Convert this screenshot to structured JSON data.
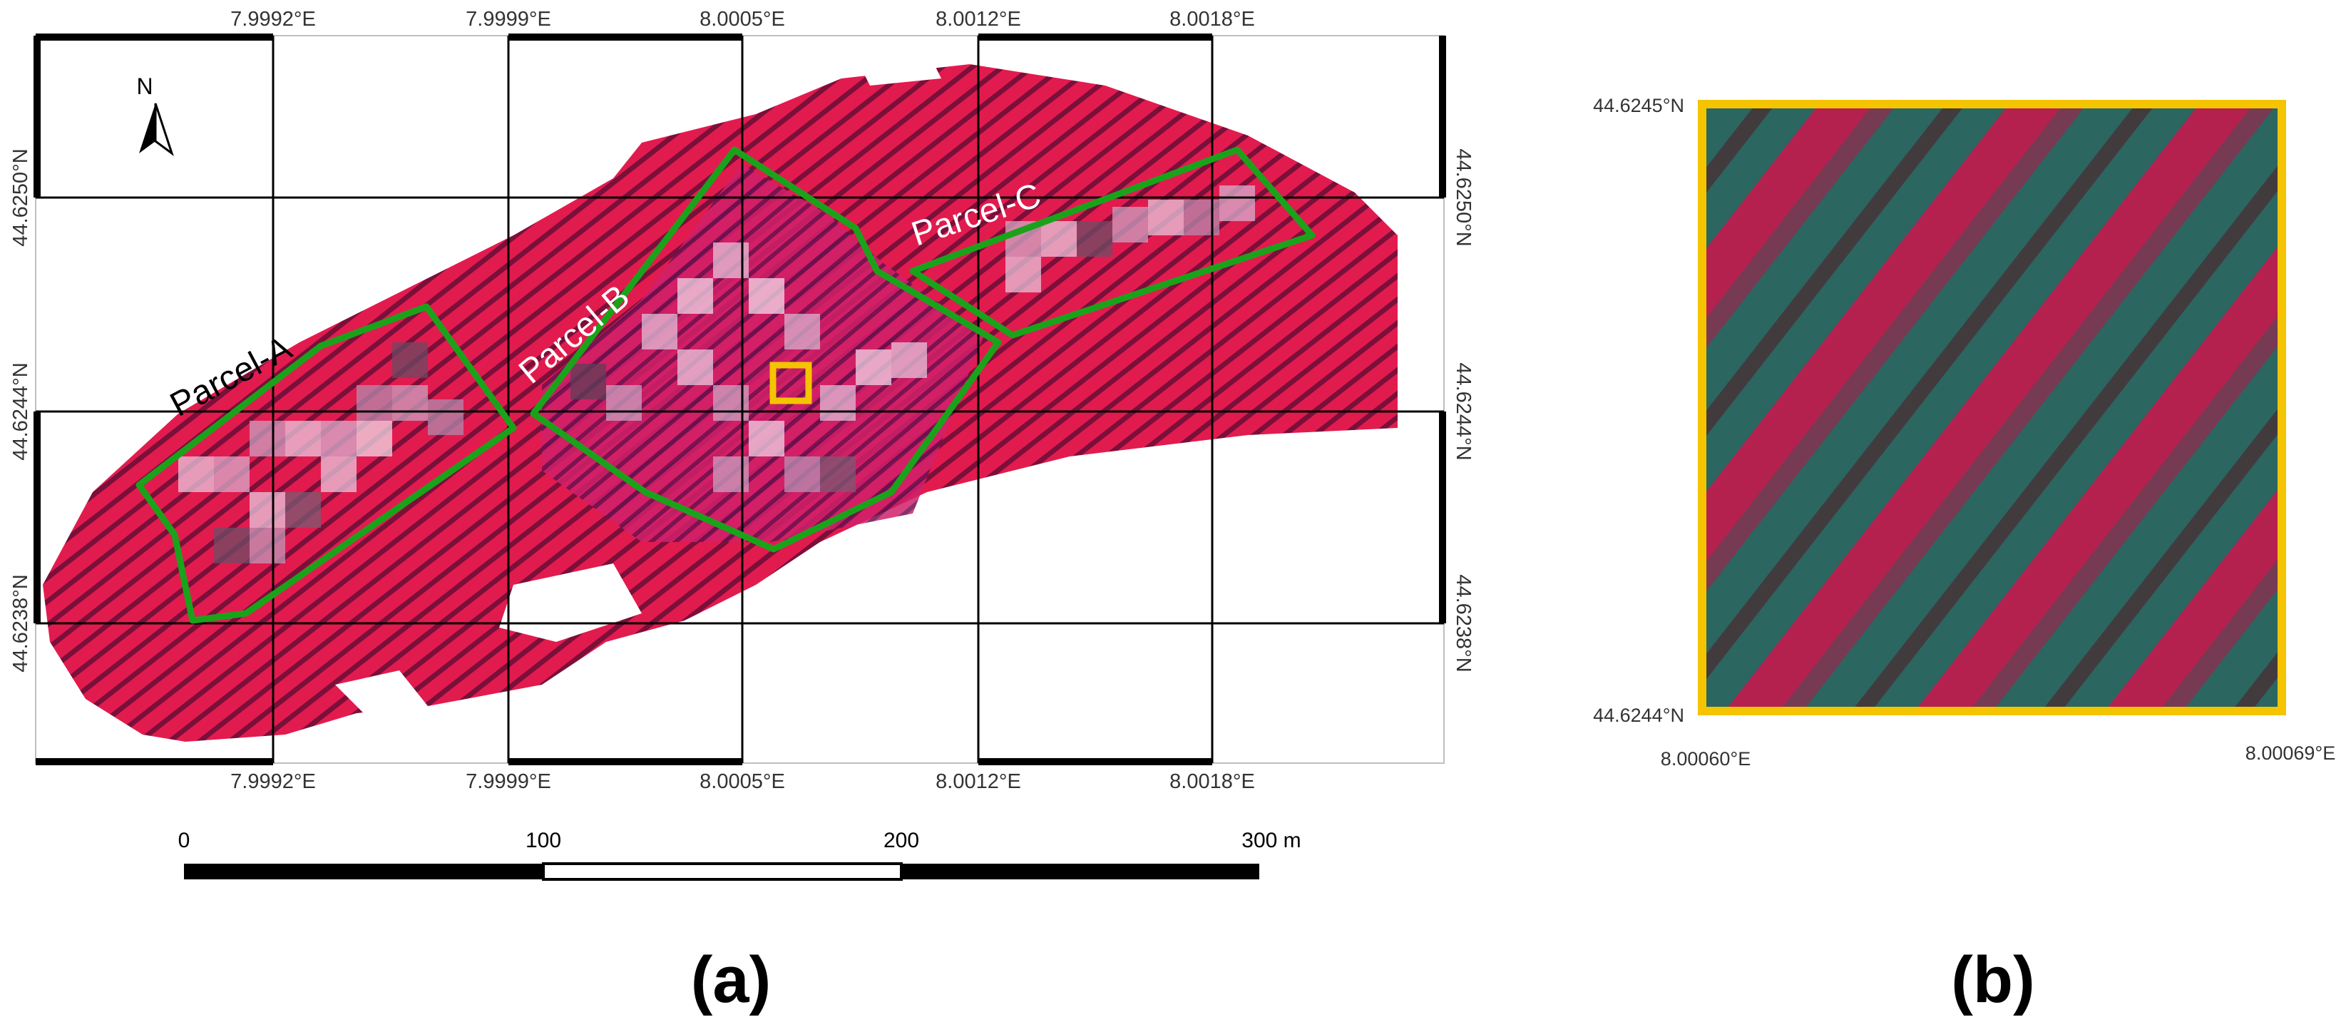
{
  "panel_a": {
    "label": "(a)",
    "top_lon_ticks": [
      "7.9992°E",
      "7.9999°E",
      "8.0005°E",
      "8.0012°E",
      "8.0018°E"
    ],
    "bottom_lon_ticks": [
      "7.9992°E",
      "7.9999°E",
      "8.0005°E",
      "8.0012°E",
      "8.0018°E"
    ],
    "left_lat_ticks": [
      "44.6250°N",
      "44.6244°N",
      "44.6238°N"
    ],
    "right_lat_ticks": [
      "44.6250°N",
      "44.6244°N",
      "44.6238°N"
    ],
    "north_arrow_label": "N",
    "parcels": [
      {
        "name": "Parcel-A",
        "color": "#000000"
      },
      {
        "name": "Parcel-B",
        "color": "#ffffff"
      },
      {
        "name": "Parcel-C",
        "color": "#ffffff"
      }
    ],
    "scale_bar": {
      "labels": [
        "0",
        "100",
        "200",
        "300 m"
      ]
    },
    "colors": {
      "parcel_outline": "#1aa31a",
      "highlight_box": "#f5c400",
      "orchard_red": "#e21b4e",
      "orchard_purple": "#8a2be2"
    }
  },
  "panel_b": {
    "label": "(b)",
    "lat_top": "44.6245°N",
    "lat_bottom": "44.6244°N",
    "lon_left": "8.00060°E",
    "lon_right": "8.00069°E",
    "colors": {
      "frame": "#f5c400",
      "row_teal": "#3e8f86",
      "soil_red": "#d61c55"
    }
  }
}
